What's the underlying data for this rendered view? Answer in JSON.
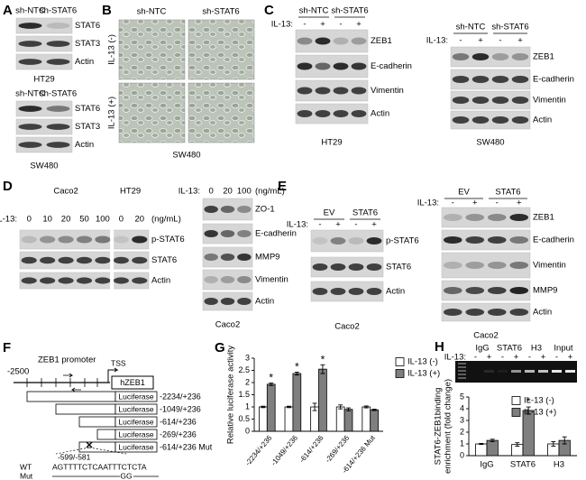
{
  "A": {
    "label": "A",
    "blots": [
      {
        "columns": [
          "sh-NTC",
          "sh-STAT6"
        ],
        "rows": [
          "STAT6",
          "STAT3",
          "Actin"
        ],
        "caption": "HT29"
      },
      {
        "columns": [
          "sh-NTC",
          "sh-STAT6"
        ],
        "rows": [
          "STAT6",
          "STAT3",
          "Actin"
        ],
        "caption": "SW480"
      }
    ]
  },
  "B": {
    "label": "B",
    "columns": [
      "sh-NTC",
      "sh-STAT6"
    ],
    "rows": [
      "IL-13 (-)",
      "IL-13 (+)"
    ],
    "caption": "SW480"
  },
  "C": {
    "label": "C",
    "blots": [
      {
        "columns": [
          "sh-NTC",
          "sh-STAT6"
        ],
        "treatment_label": "IL-13:",
        "treatment": [
          "-",
          "+",
          "-",
          "+"
        ],
        "rows": [
          "ZEB1",
          "E-cadherin",
          "Vimentin",
          "Actin"
        ],
        "caption": "HT29"
      },
      {
        "columns": [
          "sh-NTC",
          "sh-STAT6"
        ],
        "treatment_label": "IL-13:",
        "treatment": [
          "-",
          "+",
          "-",
          "+"
        ],
        "rows": [
          "ZEB1",
          "E-cadherin",
          "Vimentin",
          "Actin"
        ],
        "caption": "SW480"
      }
    ]
  },
  "D": {
    "label": "D",
    "blots": [
      {
        "columns": [
          "Caco2",
          "HT29"
        ],
        "treatment_label": "IL-13:",
        "treatment": [
          "0",
          "10",
          "20",
          "50",
          "100",
          "0",
          "20"
        ],
        "unit": "(ng/mL)",
        "rows": [
          "p-STAT6",
          "STAT6",
          "Actin"
        ]
      },
      {
        "treatment_label": "IL-13:",
        "treatment": [
          "0",
          "20",
          "100"
        ],
        "unit": "(ng/mL)",
        "rows": [
          "ZO-1",
          "E-cadherin",
          "MMP9",
          "Vimentin",
          "Actin"
        ],
        "caption": "Caco2"
      }
    ]
  },
  "E": {
    "label": "E",
    "blots": [
      {
        "columns": [
          "EV",
          "STAT6"
        ],
        "treatment_label": "IL-13:",
        "treatment": [
          "-",
          "+",
          "-",
          "+"
        ],
        "rows": [
          "p-STAT6",
          "STAT6",
          "Actin"
        ],
        "caption": "Caco2"
      },
      {
        "columns": [
          "EV",
          "STAT6"
        ],
        "treatment_label": "IL-13:",
        "treatment": [
          "-",
          "+",
          "-",
          "+"
        ],
        "rows": [
          "ZEB1",
          "E-cadherin",
          "Vimentin",
          "MMP9",
          "Actin"
        ],
        "caption": "Caco2"
      }
    ]
  },
  "F": {
    "label": "F",
    "promoter": "ZEB1 promoter",
    "start": "-2500",
    "tss": "TSS",
    "gene": "hZEB1",
    "reporter": "Luciferase",
    "constructs": [
      "-2234/+236",
      "-1049/+236",
      "-614/+236",
      "-269/+236",
      "-614/+236 Mut"
    ],
    "site": "-599/-581",
    "wt_label": "WT",
    "wt_seq": "AGTTTTCTCAATTTCTCTA",
    "mut_label": "Mut",
    "mut_seq": "GG"
  },
  "G": {
    "label": "G"
  },
  "H": {
    "label": "H",
    "gel": {
      "columns": [
        "IgG",
        "STAT6",
        "H3",
        "Input"
      ],
      "treatment_label": "IL-13:",
      "treatment": [
        "-",
        "+",
        "-",
        "+",
        "-",
        "+",
        "-",
        "+"
      ]
    }
  },
  "chart_data": [
    {
      "type": "bar",
      "ylabel": "Relative luciferase activity",
      "categories": [
        "-2234/+236",
        "-1049/+236",
        "-614/+236",
        "-269/+236",
        "-614/+236 Mut"
      ],
      "series": [
        {
          "name": "IL-13 (-)",
          "color": "#ffffff",
          "values": [
            1,
            1,
            1,
            1,
            1
          ],
          "errors": [
            0.03,
            0.03,
            0.15,
            0.08,
            0.04
          ]
        },
        {
          "name": "IL-13 (+)",
          "color": "#7f7f7f",
          "values": [
            1.93,
            2.37,
            2.55,
            0.9,
            0.88
          ],
          "errors": [
            0.05,
            0.06,
            0.18,
            0.06,
            0.03
          ]
        }
      ],
      "significance": [
        "*",
        "*",
        "*",
        null,
        null
      ],
      "ylim": [
        0,
        3
      ],
      "yticks": [
        0,
        0.5,
        1,
        1.5,
        2,
        2.5,
        3
      ],
      "legend": "right"
    },
    {
      "type": "bar",
      "ylabel": [
        "STAT6-ZEB1binding",
        "enrichment (fold change)"
      ],
      "categories": [
        "IgG",
        "STAT6",
        "H3"
      ],
      "series": [
        {
          "name": "IL-13 (-)",
          "color": "#ffffff",
          "values": [
            1,
            0.95,
            1
          ],
          "errors": [
            0.04,
            0.15,
            0.2
          ]
        },
        {
          "name": "IL-13 (+)",
          "color": "#7f7f7f",
          "values": [
            1.3,
            3.85,
            1.3
          ],
          "errors": [
            0.1,
            0.3,
            0.3
          ]
        }
      ],
      "significance": [
        null,
        "*",
        null
      ],
      "ylim": [
        0,
        5
      ],
      "yticks": [
        0,
        1,
        2,
        3,
        4,
        5
      ],
      "legend": "upper right"
    }
  ]
}
